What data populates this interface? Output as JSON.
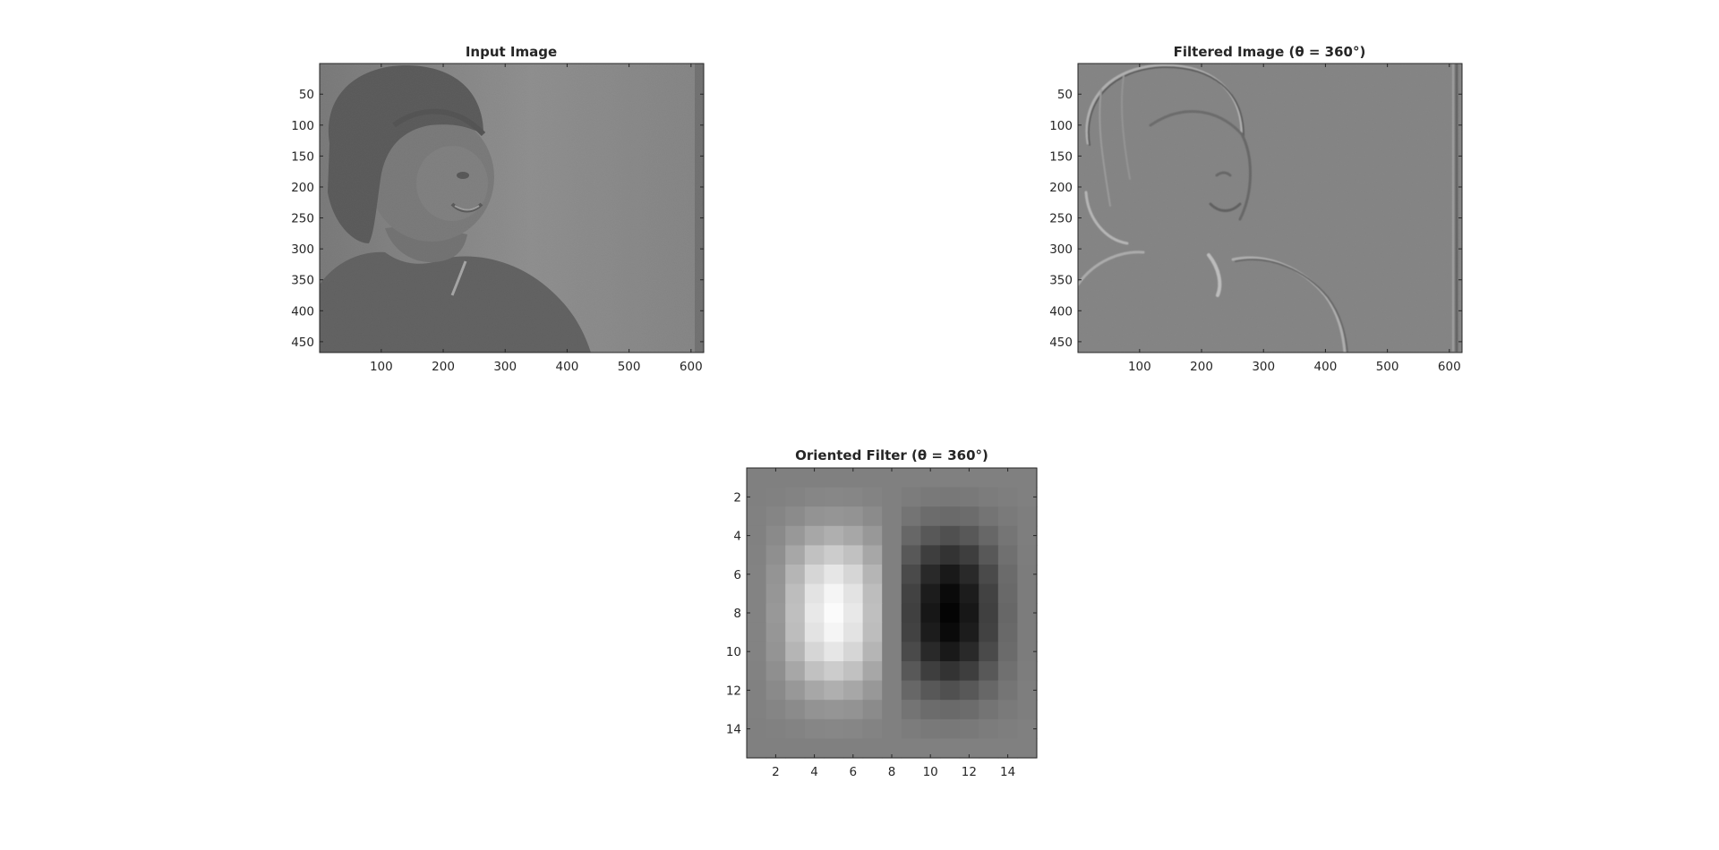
{
  "figure": {
    "background": "#ffffff",
    "colormap": "gray",
    "axes_color": "#262626"
  },
  "chart_data": [
    {
      "type": "heatmap",
      "id": "input",
      "title": "Input Image",
      "xlim": [
        0.5,
        620.5
      ],
      "ylim": [
        0.5,
        467.5
      ],
      "xticks": [
        100,
        200,
        300,
        400,
        500,
        600
      ],
      "xtick_labels": [
        "100",
        "200",
        "300",
        "400",
        "500",
        "600"
      ],
      "yticks": [
        50,
        100,
        150,
        200,
        250,
        300,
        350,
        400,
        450
      ],
      "ytick_labels": [
        "50",
        "100",
        "150",
        "200",
        "250",
        "300",
        "350",
        "400",
        "450"
      ],
      "image_description": "grayscale photograph: child with dark bob haircut smiling, looking right, against a light gray wall"
    },
    {
      "type": "heatmap",
      "id": "filtered",
      "title": "Filtered Image (θ = 360°)",
      "xlim": [
        0.5,
        620.5
      ],
      "ylim": [
        0.5,
        467.5
      ],
      "xticks": [
        100,
        200,
        300,
        400,
        500,
        600
      ],
      "xtick_labels": [
        "100",
        "200",
        "300",
        "400",
        "500",
        "600"
      ],
      "yticks": [
        50,
        100,
        150,
        200,
        250,
        300,
        350,
        400,
        450
      ],
      "ytick_labels": [
        "50",
        "100",
        "150",
        "200",
        "250",
        "300",
        "350",
        "400",
        "450"
      ],
      "image_description": "embossed edge response of the input image on a mid-gray background"
    },
    {
      "type": "heatmap",
      "id": "filter",
      "title": "Oriented Filter (θ = 360°)",
      "xlim": [
        0.5,
        15.5
      ],
      "ylim": [
        0.5,
        15.5
      ],
      "xticks": [
        2,
        4,
        6,
        8,
        10,
        12,
        14
      ],
      "xtick_labels": [
        "2",
        "4",
        "6",
        "8",
        "10",
        "12",
        "14"
      ],
      "yticks": [
        2,
        4,
        6,
        8,
        10,
        12,
        14
      ],
      "ytick_labels": [
        "2",
        "4",
        "6",
        "8",
        "10",
        "12",
        "14"
      ],
      "rows": 15,
      "cols": 15,
      "values": [
        [
          0.0,
          0.0,
          0.0,
          0.0,
          0.0,
          0.0,
          0.0,
          0.0,
          0.0,
          0.0,
          0.0,
          0.0,
          0.0,
          0.0,
          0.0
        ],
        [
          0.0,
          0.01,
          0.03,
          0.05,
          0.06,
          0.05,
          0.03,
          0.0,
          -0.03,
          -0.05,
          -0.06,
          -0.05,
          -0.03,
          -0.01,
          0.0
        ],
        [
          0.01,
          0.04,
          0.09,
          0.15,
          0.17,
          0.15,
          0.09,
          0.0,
          -0.09,
          -0.15,
          -0.17,
          -0.15,
          -0.09,
          -0.04,
          -0.01
        ],
        [
          0.01,
          0.08,
          0.19,
          0.31,
          0.37,
          0.31,
          0.19,
          0.0,
          -0.19,
          -0.31,
          -0.37,
          -0.31,
          -0.19,
          -0.08,
          -0.01
        ],
        [
          0.02,
          0.12,
          0.31,
          0.51,
          0.6,
          0.51,
          0.31,
          0.0,
          -0.31,
          -0.51,
          -0.6,
          -0.51,
          -0.31,
          -0.12,
          -0.02
        ],
        [
          0.03,
          0.16,
          0.42,
          0.68,
          0.8,
          0.68,
          0.42,
          0.0,
          -0.42,
          -0.68,
          -0.8,
          -0.68,
          -0.42,
          -0.16,
          -0.03
        ],
        [
          0.03,
          0.18,
          0.48,
          0.78,
          0.92,
          0.78,
          0.48,
          0.0,
          -0.48,
          -0.78,
          -0.92,
          -0.78,
          -0.48,
          -0.18,
          -0.03
        ],
        [
          0.03,
          0.19,
          0.5,
          0.82,
          0.97,
          0.82,
          0.5,
          0.0,
          -0.5,
          -0.82,
          -0.97,
          -0.82,
          -0.5,
          -0.19,
          -0.03
        ],
        [
          0.03,
          0.18,
          0.48,
          0.78,
          0.92,
          0.78,
          0.48,
          0.0,
          -0.48,
          -0.78,
          -0.92,
          -0.78,
          -0.48,
          -0.18,
          -0.03
        ],
        [
          0.03,
          0.16,
          0.42,
          0.68,
          0.8,
          0.68,
          0.42,
          0.0,
          -0.42,
          -0.68,
          -0.8,
          -0.68,
          -0.42,
          -0.16,
          -0.03
        ],
        [
          0.02,
          0.12,
          0.31,
          0.51,
          0.6,
          0.51,
          0.31,
          0.0,
          -0.31,
          -0.51,
          -0.6,
          -0.51,
          -0.31,
          -0.12,
          -0.02
        ],
        [
          0.01,
          0.08,
          0.19,
          0.31,
          0.37,
          0.31,
          0.19,
          0.0,
          -0.19,
          -0.31,
          -0.37,
          -0.31,
          -0.19,
          -0.08,
          -0.01
        ],
        [
          0.01,
          0.04,
          0.09,
          0.15,
          0.17,
          0.15,
          0.09,
          0.0,
          -0.09,
          -0.15,
          -0.17,
          -0.15,
          -0.09,
          -0.04,
          -0.01
        ],
        [
          0.0,
          0.01,
          0.03,
          0.05,
          0.06,
          0.05,
          0.03,
          0.0,
          -0.03,
          -0.05,
          -0.06,
          -0.05,
          -0.03,
          -0.01,
          0.0
        ],
        [
          0.0,
          0.0,
          0.0,
          0.0,
          0.0,
          0.0,
          0.0,
          0.0,
          0.0,
          0.0,
          0.0,
          0.0,
          0.0,
          0.0,
          0.0
        ]
      ],
      "clim": [
        -1,
        1
      ]
    }
  ]
}
